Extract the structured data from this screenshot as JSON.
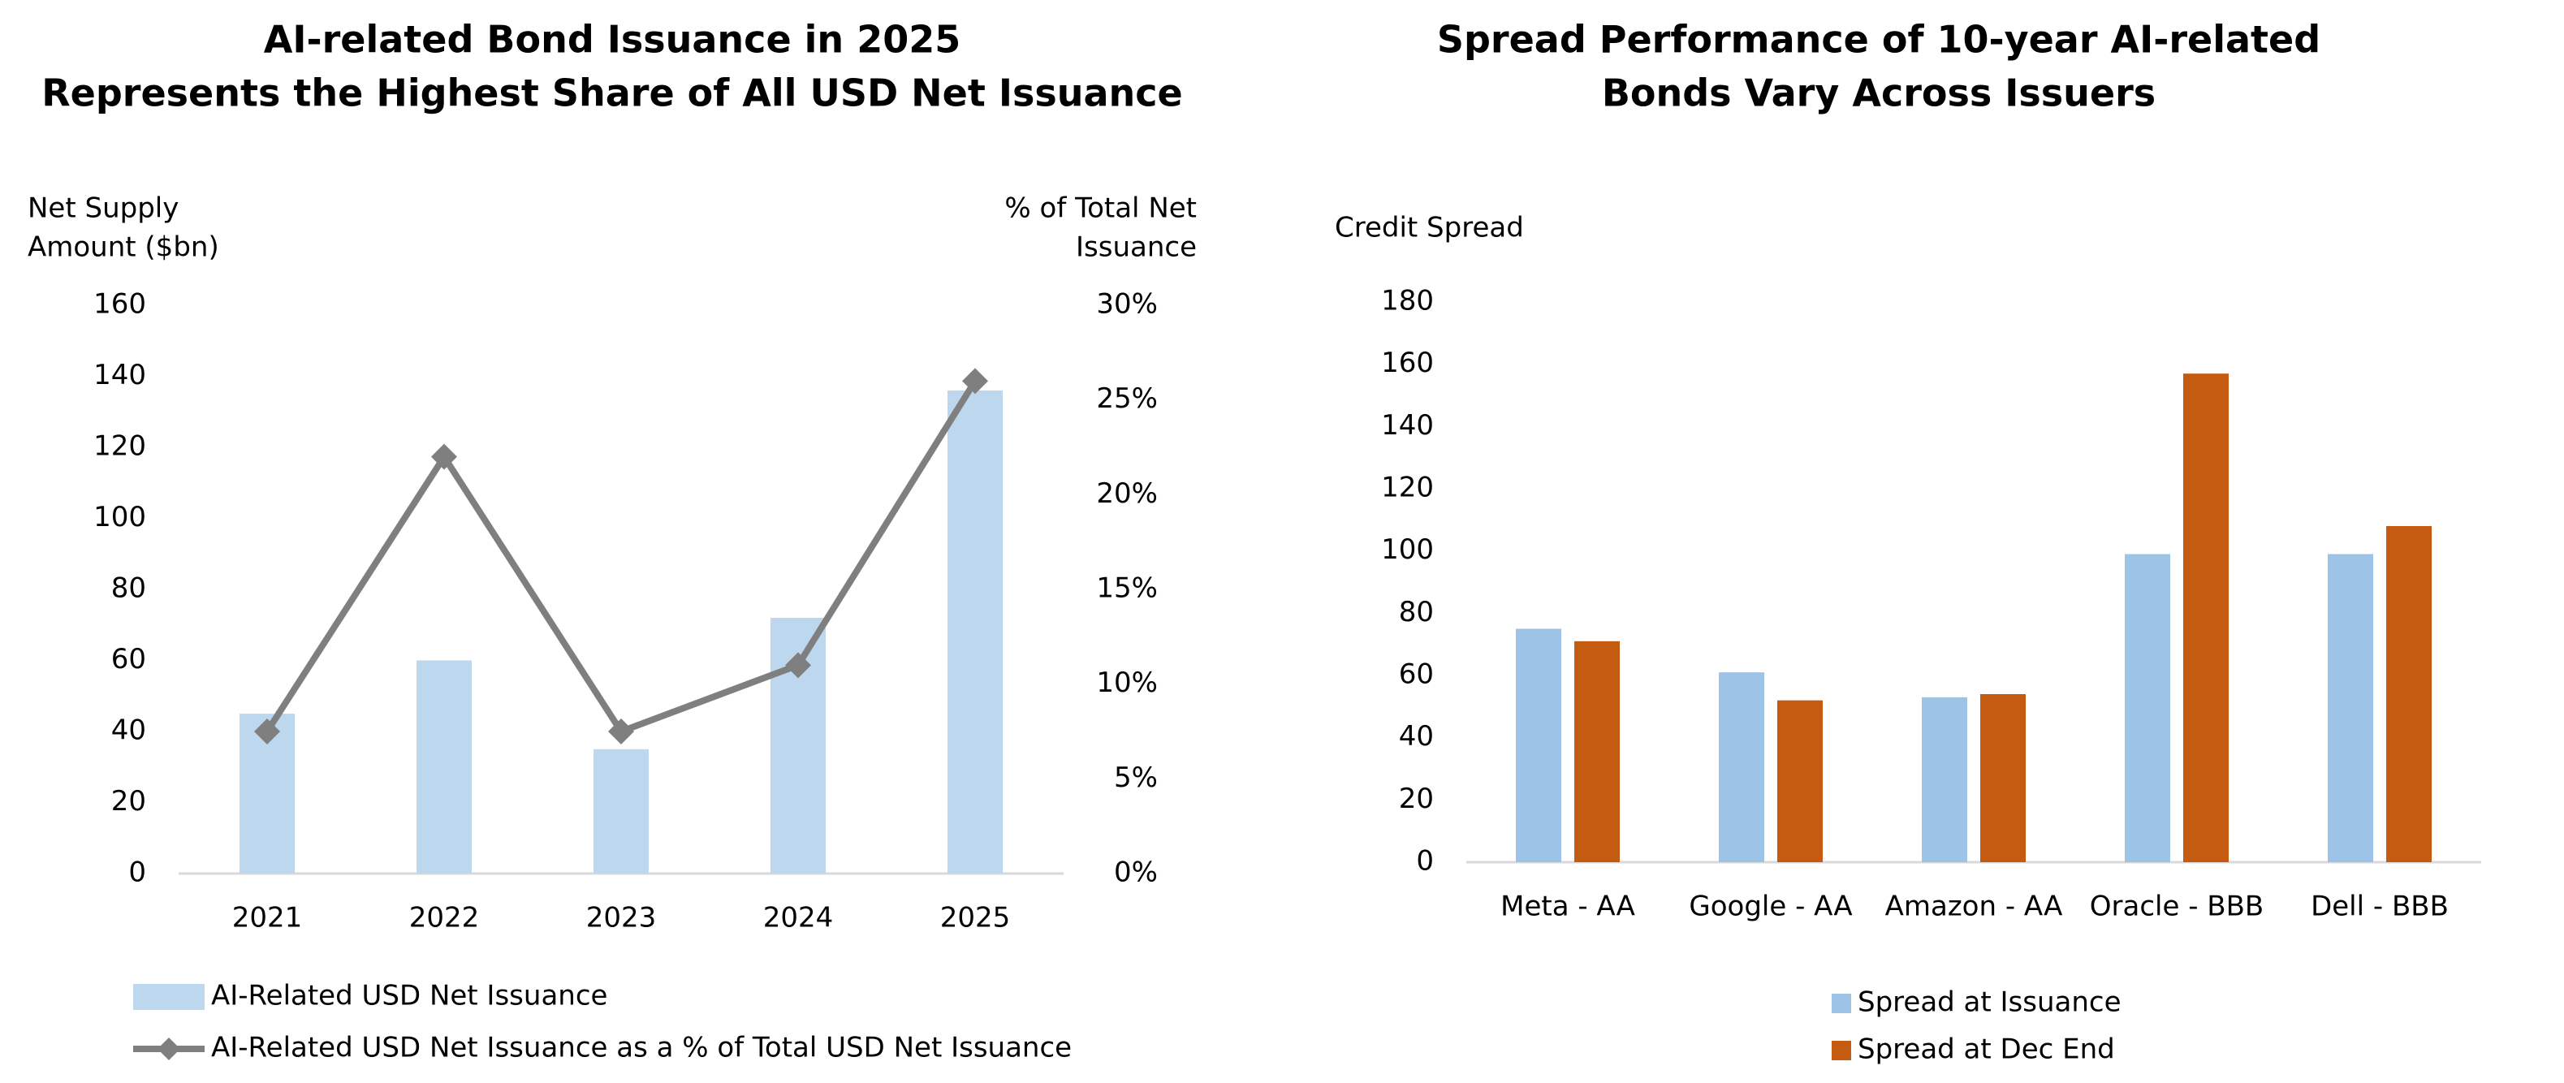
{
  "chart_data": [
    {
      "type": "bar",
      "title": [
        "AI-related Bond Issuance in 2025",
        "Represents the Highest Share of All USD Net Issuance"
      ],
      "y_label": [
        "Net Supply",
        "Amount ($bn)"
      ],
      "y2_label": [
        "% of Total Net",
        "Issuance"
      ],
      "categories": [
        "2021",
        "2022",
        "2023",
        "2024",
        "2025"
      ],
      "series": [
        {
          "name": "AI-Related USD Net Issuance",
          "color": "#bdd7ee",
          "values": [
            45,
            60,
            35,
            72,
            136
          ]
        },
        {
          "name": "AI-Related USD Net Issuance as a % of Total USD Net Issuance",
          "color": "#7f7f7f",
          "type": "line",
          "axis": "y2",
          "values": [
            7.5,
            22,
            7.5,
            11,
            26
          ]
        }
      ],
      "ylim": [
        0,
        160
      ],
      "yticks": [
        0,
        20,
        40,
        60,
        80,
        100,
        120,
        140,
        160
      ],
      "y2lim": [
        0,
        30
      ],
      "y2ticks": [
        {
          "value": 0,
          "label": "0%"
        },
        {
          "value": 5,
          "label": "5%"
        },
        {
          "value": 10,
          "label": "10%"
        },
        {
          "value": 15,
          "label": "15%"
        },
        {
          "value": 20,
          "label": "20%"
        },
        {
          "value": 25,
          "label": "25%"
        },
        {
          "value": 30,
          "label": "30%"
        }
      ],
      "legend": "bottom"
    },
    {
      "type": "bar",
      "title": [
        "Spread Performance of 10-year AI-related",
        "Bonds Vary Across Issuers"
      ],
      "y_label": [
        "Credit Spread"
      ],
      "categories": [
        "Meta - AA",
        "Google - AA",
        "Amazon - AA",
        "Oracle - BBB",
        "Dell - BBB"
      ],
      "series": [
        {
          "name": "Spread at Issuance",
          "color": "#9dc3e6",
          "values": [
            75,
            61,
            53,
            99,
            99
          ]
        },
        {
          "name": "Spread at Dec End",
          "color": "#c55a11",
          "values": [
            71,
            52,
            54,
            157,
            108
          ]
        }
      ],
      "ylim": [
        0,
        180
      ],
      "yticks": [
        0,
        20,
        40,
        60,
        80,
        100,
        120,
        140,
        160,
        180
      ],
      "legend": "bottom"
    }
  ]
}
